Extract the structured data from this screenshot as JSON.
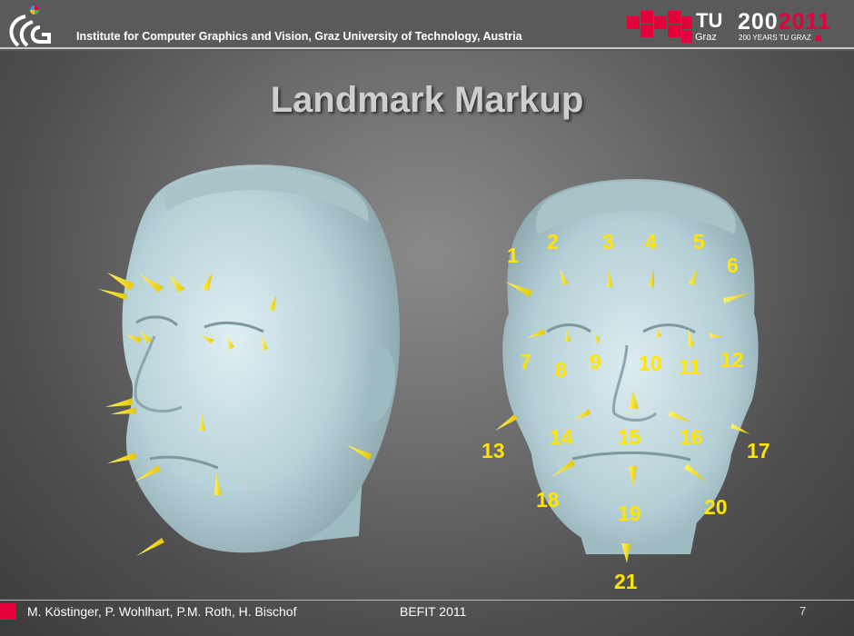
{
  "header": {
    "institute": "Institute for Computer Graphics and Vision, Graz University of Technology, Austria",
    "tu_name": "TU",
    "tu_city": "Graz",
    "anniversary_years": "200",
    "anniversary_year": "2011",
    "anniversary_caption": "200 YEARS TU GRAZ"
  },
  "title": "Landmark Markup",
  "landmarks": [
    "1",
    "2",
    "3",
    "4",
    "5",
    "6",
    "7",
    "8",
    "9",
    "10",
    "11",
    "12",
    "13",
    "14",
    "15",
    "16",
    "17",
    "18",
    "19",
    "20",
    "21"
  ],
  "footer": {
    "authors": "M. Köstinger, P. Wohlhart, P.M. Roth, H. Bischof",
    "event": "BEFIT 2011",
    "page": "7"
  },
  "colors": {
    "marker": "#ffe500",
    "accent": "#e4003a",
    "face": "#b9d4da"
  }
}
